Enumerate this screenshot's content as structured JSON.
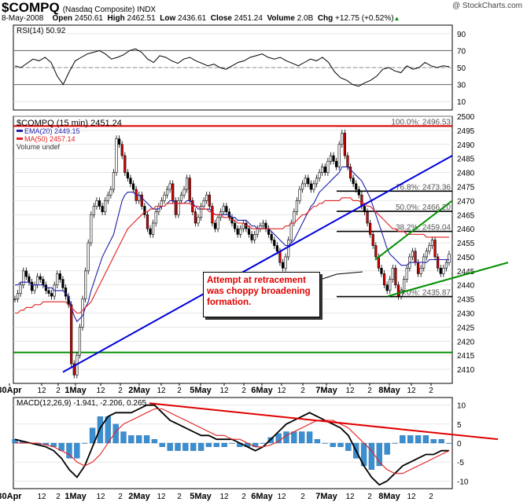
{
  "header": {
    "symbol": "$COMPQ",
    "name": "(Nasdaq Composite)",
    "exchange": "INDX",
    "copyright": "@ StockCharts.com",
    "date": "8-May-2008",
    "open_label": "Open",
    "open": "2450.61",
    "high_label": "High",
    "high": "2462.51",
    "low_label": "Low",
    "low": "2436.61",
    "close_label": "Close",
    "close": "2451.24",
    "volume_label": "Volume",
    "volume": "2.0B",
    "chg_label": "Chg",
    "chg": "+12.75 (+0.52%)",
    "chg_arrow": "▲"
  },
  "colors": {
    "price": "#000000",
    "ema": "#1f1fa8",
    "ma": "#e02020",
    "trend_blue": "#0000dd",
    "trend_red": "#e00000",
    "trend_green": "#009000",
    "macd_hist": "#3b8ed0",
    "grid": "#d8d8d8"
  },
  "chart_data": [
    {
      "panel": "rsi",
      "type": "line",
      "label": "RSI(14) 50.92",
      "y_ticks": [
        10,
        30,
        50,
        70,
        90
      ],
      "ylim": [
        0,
        100
      ],
      "levels": [
        30,
        70
      ],
      "series": [
        {
          "name": "RSI(14)",
          "values": [
            52,
            50,
            55,
            60,
            58,
            62,
            56,
            40,
            30,
            45,
            58,
            62,
            66,
            68,
            70,
            66,
            60,
            62,
            65,
            70,
            72,
            68,
            60,
            56,
            64,
            62,
            58,
            55,
            60,
            62,
            58,
            55,
            52,
            54,
            50,
            48,
            52,
            56,
            58,
            62,
            64,
            66,
            62,
            60,
            62,
            58,
            55,
            52,
            56,
            60,
            58,
            62,
            56,
            45,
            38,
            35,
            30,
            28,
            32,
            35,
            40,
            48,
            50,
            46,
            44,
            52,
            48,
            50,
            56,
            52,
            50,
            52,
            51
          ]
        }
      ]
    },
    {
      "panel": "price",
      "type": "candlestick",
      "label": "$COMPQ (15 min) 2451.24",
      "legend": [
        "EMA(20) 2449.15",
        "MA(50) 2457.14",
        "Volume undef"
      ],
      "ylim": [
        2405,
        2500
      ],
      "y_ticks": [
        2410,
        2415,
        2420,
        2425,
        2430,
        2435,
        2440,
        2445,
        2450,
        2455,
        2460,
        2465,
        2470,
        2475,
        2480,
        2485,
        2490,
        2495,
        2500
      ],
      "x_tick_labels": [
        "30Apr",
        "12",
        "2",
        "1May",
        "12",
        "2",
        "2May",
        "12",
        "2",
        "5May",
        "12",
        "2",
        "6May",
        "12",
        "2",
        "7May",
        "12",
        "2",
        "8May",
        "12",
        "2"
      ],
      "fib_levels": [
        {
          "label": "100.0%: 2496.53",
          "value": 2496.53
        },
        {
          "label": "76.8%: 2473.36",
          "value": 2473.36
        },
        {
          "label": "50.0%: 2466.20",
          "value": 2466.2
        },
        {
          "label": "38.2%: 2459.04",
          "value": 2459.04
        },
        {
          "label": "0.0%: 2435.87",
          "value": 2435.87
        }
      ],
      "horizontal_lines": [
        {
          "color": "red",
          "value": 2496.53
        },
        {
          "color": "green",
          "value": 2416
        }
      ],
      "close": [
        2435,
        2437,
        2440,
        2445,
        2443,
        2441,
        2438,
        2440,
        2443,
        2442,
        2440,
        2438,
        2437,
        2436,
        2440,
        2444,
        2442,
        2439,
        2436,
        2433,
        2412,
        2408,
        2415,
        2425,
        2435,
        2445,
        2455,
        2465,
        2468,
        2470,
        2468,
        2466,
        2470,
        2472,
        2474,
        2480,
        2492,
        2490,
        2486,
        2480,
        2478,
        2476,
        2474,
        2470,
        2472,
        2468,
        2465,
        2460,
        2458,
        2462,
        2466,
        2468,
        2470,
        2472,
        2474,
        2476,
        2470,
        2465,
        2470,
        2472,
        2474,
        2478,
        2470,
        2466,
        2462,
        2464,
        2468,
        2470,
        2472,
        2468,
        2462,
        2460,
        2464,
        2466,
        2468,
        2466,
        2464,
        2462,
        2460,
        2458,
        2460,
        2462,
        2460,
        2458,
        2456,
        2458,
        2460,
        2461,
        2462,
        2460,
        2458,
        2456,
        2454,
        2452,
        2448,
        2446,
        2450,
        2456,
        2462,
        2466,
        2470,
        2474,
        2476,
        2478,
        2476,
        2474,
        2476,
        2478,
        2480,
        2482,
        2480,
        2484,
        2486,
        2484,
        2482,
        2490,
        2494,
        2486,
        2482,
        2478,
        2476,
        2474,
        2472,
        2468,
        2466,
        2462,
        2458,
        2454,
        2450,
        2446,
        2444,
        2440,
        2438,
        2442,
        2446,
        2440,
        2436,
        2438,
        2442,
        2446,
        2450,
        2452,
        2448,
        2444,
        2446,
        2450,
        2452,
        2454,
        2456,
        2450,
        2446,
        2444,
        2446,
        2448,
        2451
      ],
      "ema20": [
        2440,
        2440,
        2441,
        2441,
        2441,
        2441,
        2440,
        2440,
        2440,
        2440,
        2440,
        2439,
        2439,
        2439,
        2438,
        2438,
        2438,
        2438,
        2437,
        2436,
        2432,
        2429,
        2427,
        2428,
        2429,
        2432,
        2434,
        2438,
        2441,
        2444,
        2447,
        2450,
        2452,
        2454,
        2456,
        2458,
        2462,
        2466,
        2470,
        2472,
        2473,
        2473,
        2473,
        2472,
        2472,
        2471,
        2470,
        2469,
        2468,
        2467,
        2467,
        2467,
        2468,
        2468,
        2469,
        2470,
        2470,
        2469,
        2469,
        2469,
        2469,
        2470,
        2470,
        2469,
        2468,
        2467,
        2467,
        2467,
        2467,
        2467,
        2466,
        2465,
        2465,
        2465,
        2465,
        2465,
        2465,
        2464,
        2464,
        2463,
        2463,
        2463,
        2463,
        2462,
        2461,
        2461,
        2460,
        2460,
        2460,
        2460,
        2460,
        2459,
        2458,
        2457,
        2456,
        2455,
        2454,
        2454,
        2455,
        2456,
        2458,
        2460,
        2462,
        2464,
        2466,
        2468,
        2469,
        2471,
        2473,
        2474,
        2475,
        2476,
        2477,
        2478,
        2479,
        2480,
        2482,
        2482,
        2482,
        2481,
        2480,
        2479,
        2478,
        2477,
        2475,
        2473,
        2471,
        2468,
        2465,
        2462,
        2459,
        2456,
        2453,
        2451,
        2450,
        2449,
        2448,
        2447,
        2447,
        2447,
        2448,
        2448,
        2448,
        2448,
        2448,
        2448,
        2448,
        2449,
        2449,
        2449,
        2449,
        2449,
        2449,
        2449,
        2449
      ],
      "ma50": [
        2430,
        2430,
        2431,
        2431,
        2432,
        2432,
        2432,
        2433,
        2433,
        2433,
        2434,
        2434,
        2434,
        2434,
        2434,
        2434,
        2434,
        2434,
        2434,
        2433,
        2432,
        2431,
        2430,
        2430,
        2431,
        2432,
        2433,
        2434,
        2436,
        2438,
        2440,
        2442,
        2444,
        2446,
        2448,
        2450,
        2452,
        2454,
        2456,
        2458,
        2460,
        2461,
        2462,
        2463,
        2464,
        2465,
        2466,
        2466,
        2467,
        2467,
        2468,
        2468,
        2468,
        2468,
        2469,
        2469,
        2469,
        2469,
        2469,
        2469,
        2469,
        2469,
        2469,
        2468,
        2468,
        2468,
        2467,
        2467,
        2467,
        2466,
        2466,
        2465,
        2465,
        2465,
        2464,
        2464,
        2464,
        2463,
        2463,
        2462,
        2462,
        2462,
        2461,
        2461,
        2460,
        2460,
        2460,
        2460,
        2460,
        2460,
        2460,
        2460,
        2460,
        2460,
        2460,
        2460,
        2461,
        2461,
        2462,
        2462,
        2463,
        2464,
        2465,
        2465,
        2466,
        2467,
        2468,
        2468,
        2469,
        2469,
        2470,
        2470,
        2470,
        2470,
        2470,
        2470,
        2471,
        2471,
        2471,
        2471,
        2470,
        2470,
        2470,
        2469,
        2469,
        2468,
        2468,
        2467,
        2466,
        2465,
        2464,
        2463,
        2462,
        2461,
        2460,
        2460,
        2459,
        2459,
        2459,
        2458,
        2458,
        2458,
        2458,
        2458,
        2458,
        2458,
        2457,
        2457,
        2457,
        2457,
        2457,
        2457,
        2457,
        2457,
        2457
      ]
    },
    {
      "panel": "macd",
      "type": "line+histogram",
      "label": "MACD(12,26,9) -1.941, -2.206, 0.265",
      "y_ticks": [
        -10,
        -5,
        0,
        5,
        10
      ],
      "ylim": [
        -12,
        12
      ],
      "series": [
        {
          "name": "MACD",
          "values": [
            1,
            0.5,
            0,
            -0.5,
            -1,
            -2,
            -4,
            -7,
            -9,
            -6,
            -1,
            4,
            7,
            8,
            8,
            8,
            9,
            10,
            10,
            8,
            6,
            5,
            4,
            3,
            2,
            2,
            1,
            1,
            1,
            0,
            -1,
            -2,
            -1,
            1,
            3,
            5,
            6,
            7,
            8,
            7,
            6,
            5,
            4,
            2,
            -2,
            -6,
            -9,
            -11,
            -10,
            -8,
            -6,
            -5,
            -4,
            -3,
            -3,
            -2,
            -2
          ]
        },
        {
          "name": "Signal",
          "values": [
            0,
            0,
            0,
            0,
            -0.5,
            -1,
            -2,
            -3,
            -5,
            -6,
            -5,
            -3,
            0,
            3,
            5,
            6,
            7,
            8,
            9,
            9,
            8,
            7,
            6,
            5,
            4,
            3,
            2,
            2,
            1,
            1,
            0,
            -1,
            -1,
            -0.5,
            0.5,
            2,
            3,
            4,
            5,
            6,
            6,
            6,
            5,
            4,
            2,
            0,
            -2,
            -5,
            -7,
            -8,
            -8,
            -7,
            -6,
            -5,
            -4,
            -3,
            -2
          ]
        },
        {
          "name": "Histogram",
          "values": [
            1,
            0.5,
            0,
            -0.5,
            -0.5,
            -1,
            -2,
            -4,
            -4,
            0,
            4,
            7,
            7,
            5,
            3,
            2,
            2,
            2,
            1,
            -1,
            -2,
            -2,
            -2,
            -2,
            -2,
            -1,
            -1,
            -1,
            0,
            -1,
            -1,
            -1,
            0,
            1.5,
            2.5,
            3,
            3,
            3,
            3,
            1,
            0,
            -1,
            -1,
            -2,
            -4,
            -6,
            -7,
            -6,
            -3,
            0,
            2,
            2,
            2,
            2,
            1,
            1,
            0
          ]
        }
      ]
    }
  ],
  "annotation": {
    "line1": "Attempt at retracement",
    "line2": "was choppy broadening",
    "line3": "formation."
  }
}
